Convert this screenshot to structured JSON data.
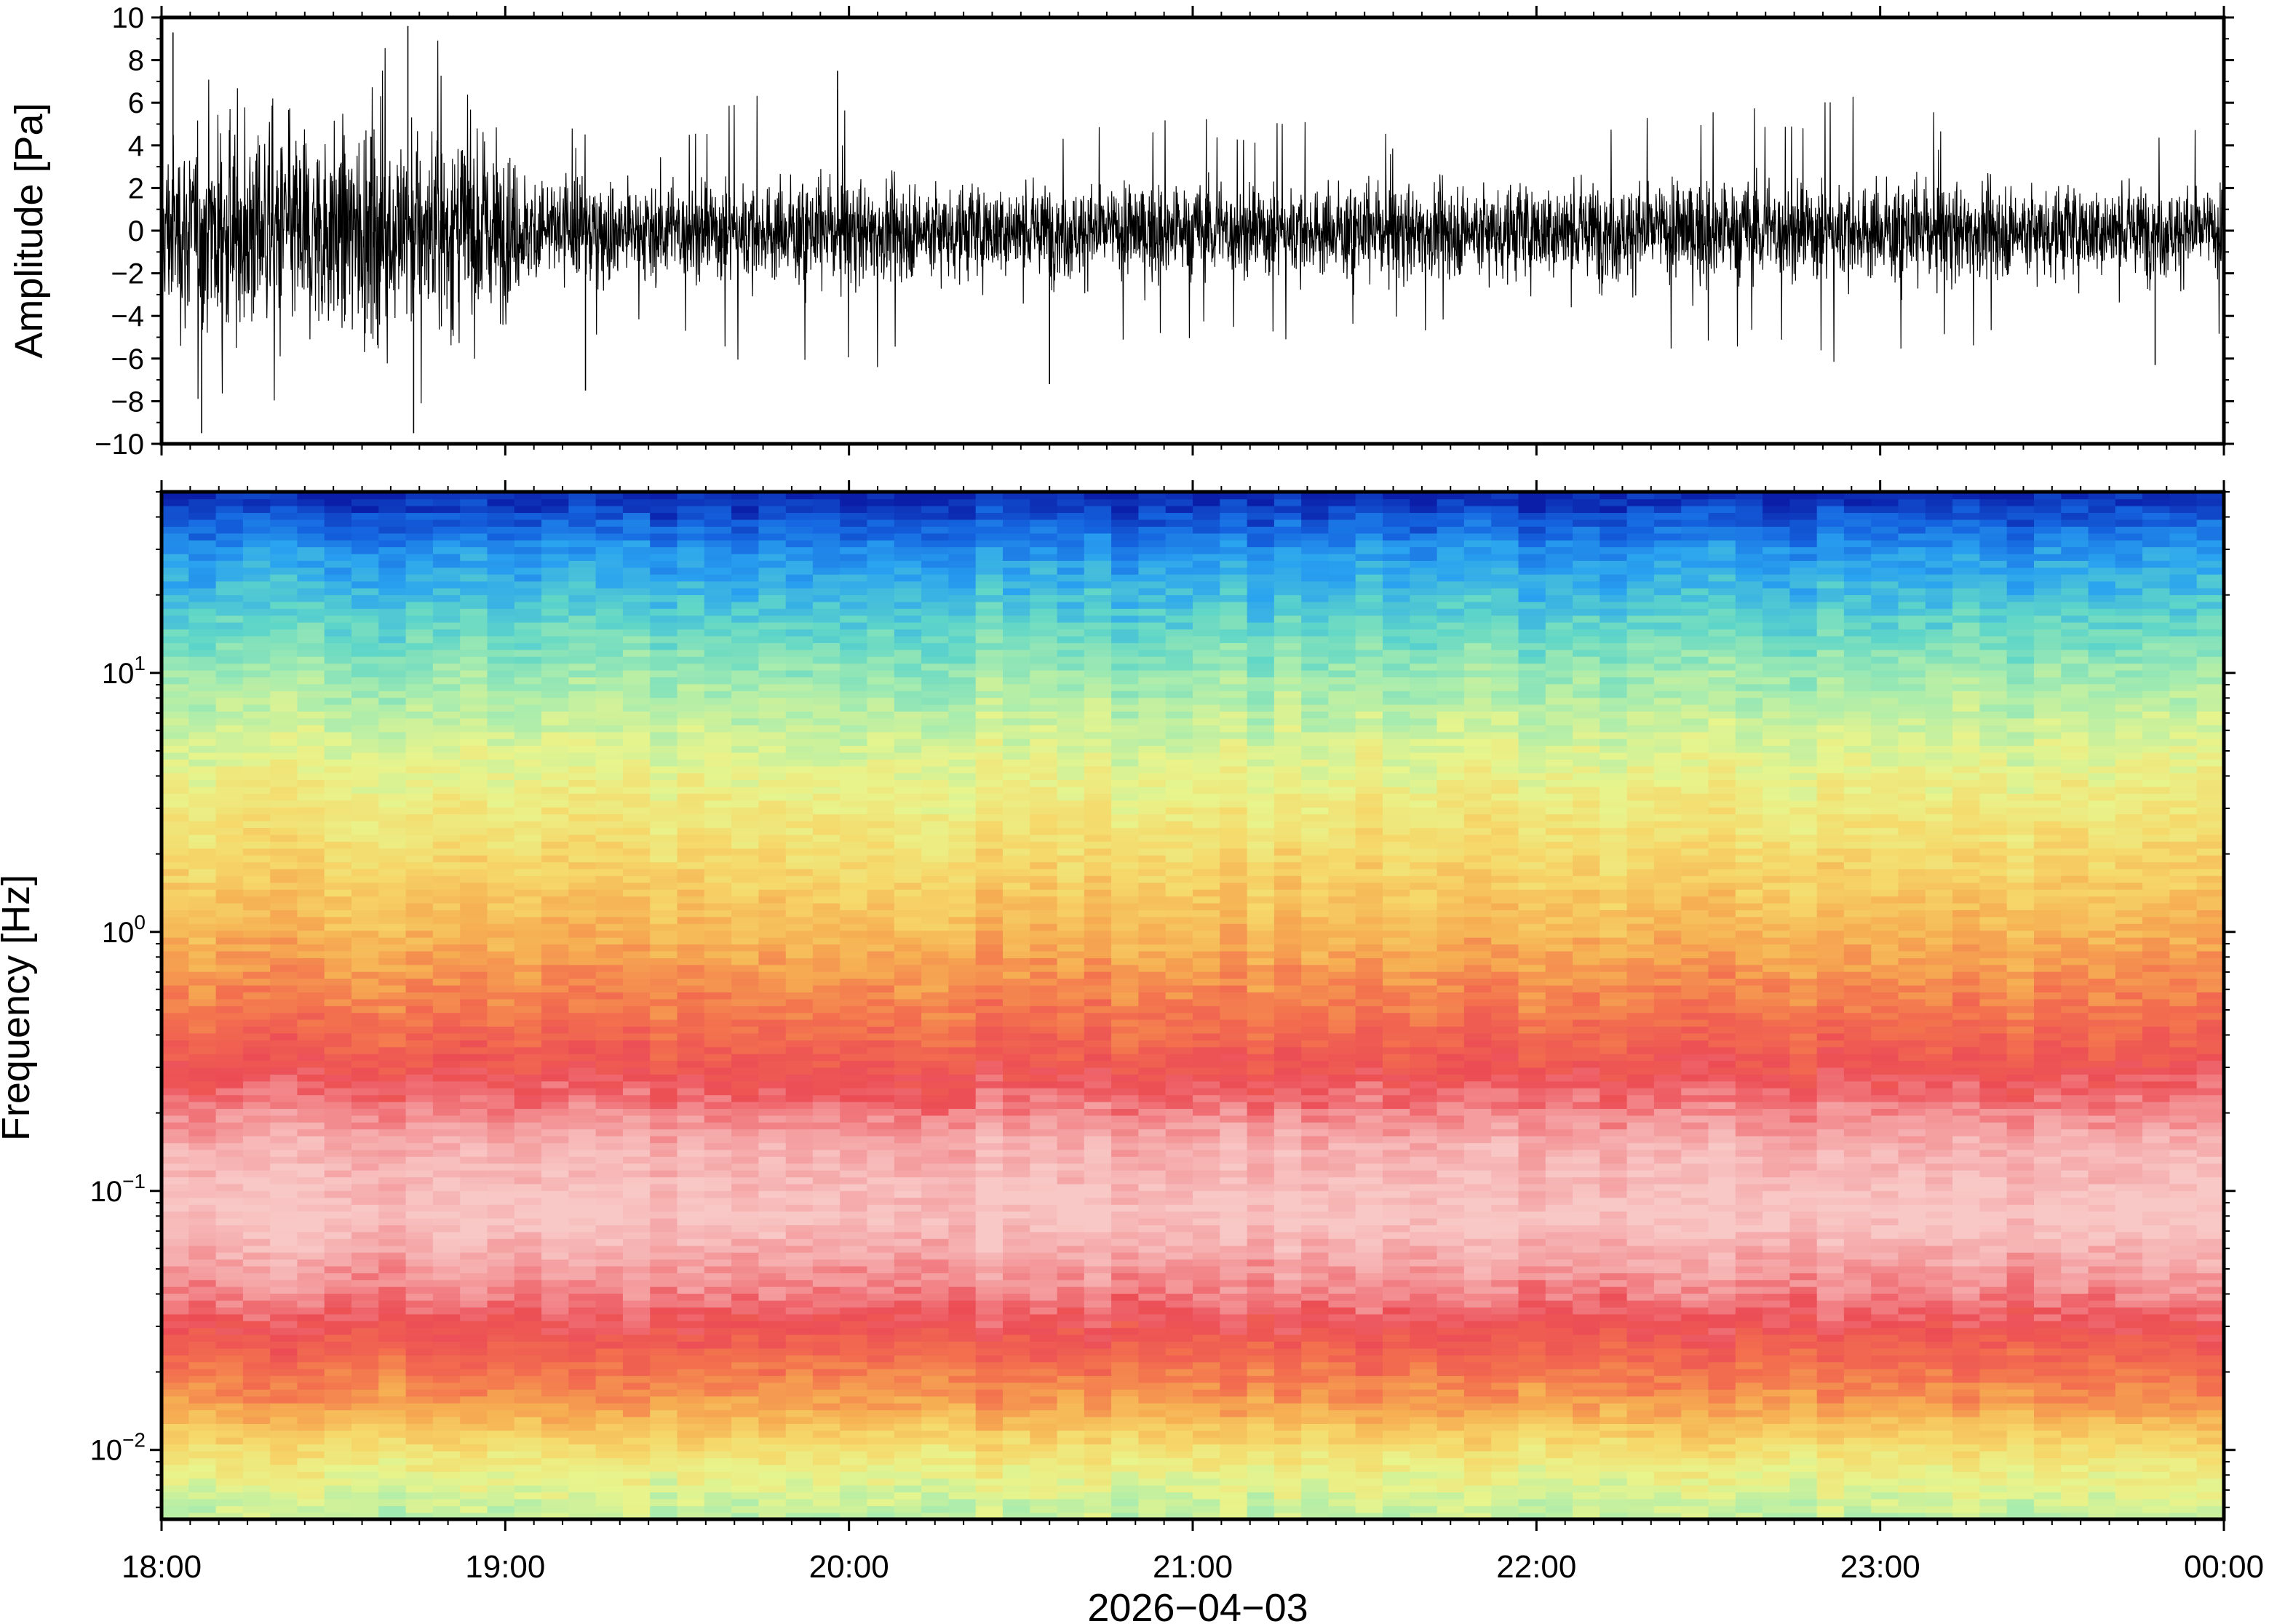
{
  "chart_data": [
    {
      "type": "line",
      "panel": "waveform",
      "ylabel": "Amplitude [Pa]",
      "ylim": [
        -10,
        10
      ],
      "yticks": [
        "10",
        "8",
        "6",
        "4",
        "2",
        "0",
        "−2",
        "−4",
        "−6",
        "−8",
        "−10"
      ],
      "grid": false,
      "x_range": [
        "18:00",
        "00:00"
      ],
      "trace_color": "#000000",
      "envelope": {
        "x_hours": [
          18.0,
          18.25,
          18.5,
          18.75,
          18.95,
          19.05,
          19.5,
          20.0,
          20.5,
          21.0,
          21.5,
          22.0,
          22.5,
          23.0,
          23.5,
          24.0
        ],
        "typical_amplitude": [
          4.5,
          5.5,
          5.0,
          5.5,
          5.0,
          3.0,
          2.6,
          2.6,
          2.4,
          2.4,
          2.3,
          2.5,
          2.6,
          2.5,
          2.4,
          2.3
        ],
        "peak_amplitude": [
          9.3,
          8.8,
          8.0,
          9.6,
          8.0,
          5.0,
          5.5,
          7.5,
          5.0,
          5.5,
          5.0,
          5.5,
          5.8,
          6.5,
          5.5,
          5.0
        ]
      },
      "notable_spikes": [
        {
          "time": "18:02",
          "value": 9.3
        },
        {
          "time": "18:07",
          "value": -9.5
        },
        {
          "time": "18:43",
          "value": 9.6
        },
        {
          "time": "18:44",
          "value": -9.5
        },
        {
          "time": "19:14",
          "value": -7.5
        },
        {
          "time": "19:58",
          "value": 7.5
        },
        {
          "time": "20:35",
          "value": -7.2
        },
        {
          "time": "23:48",
          "value": -6.3
        }
      ]
    },
    {
      "type": "heatmap",
      "panel": "spectrogram",
      "ylabel": "Frequency [Hz]",
      "yscale": "log",
      "ylim": [
        0.0054,
        50
      ],
      "ytick_labels": [
        {
          "value": 10,
          "base": "10",
          "exp": "1"
        },
        {
          "value": 1,
          "base": "10",
          "exp": "0"
        },
        {
          "value": 0.1,
          "base": "10",
          "exp": "−1"
        },
        {
          "value": 0.01,
          "base": "10",
          "exp": "−2"
        }
      ],
      "xlabel": "2026−04−03",
      "xticks": [
        "18:00",
        "19:00",
        "20:00",
        "21:00",
        "22:00",
        "23:00",
        "00:00"
      ],
      "grid": false,
      "colormap": "spectral: dark blue (low power) → cyan → green → yellow → orange → red → pink (high power)",
      "colormap_stops": [
        "#0a1ea8",
        "#1565e0",
        "#2aa3f0",
        "#5fd6c8",
        "#a8ecae",
        "#e8f48c",
        "#f6d86a",
        "#f6ae52",
        "#f3714e",
        "#ec4d55",
        "#f49a9c",
        "#f8c8c6"
      ],
      "frequency_profile": {
        "frequency_hz": [
          50,
          30,
          15,
          10,
          5,
          2,
          1,
          0.5,
          0.3,
          0.15,
          0.08,
          0.04,
          0.025,
          0.015,
          0.01,
          0.007,
          0.0055
        ],
        "relative_power": [
          0.0,
          0.16,
          0.28,
          0.35,
          0.44,
          0.54,
          0.62,
          0.72,
          0.8,
          0.95,
          1.0,
          0.88,
          0.77,
          0.66,
          0.52,
          0.44,
          0.4
        ]
      },
      "time_windows": 76
    }
  ]
}
